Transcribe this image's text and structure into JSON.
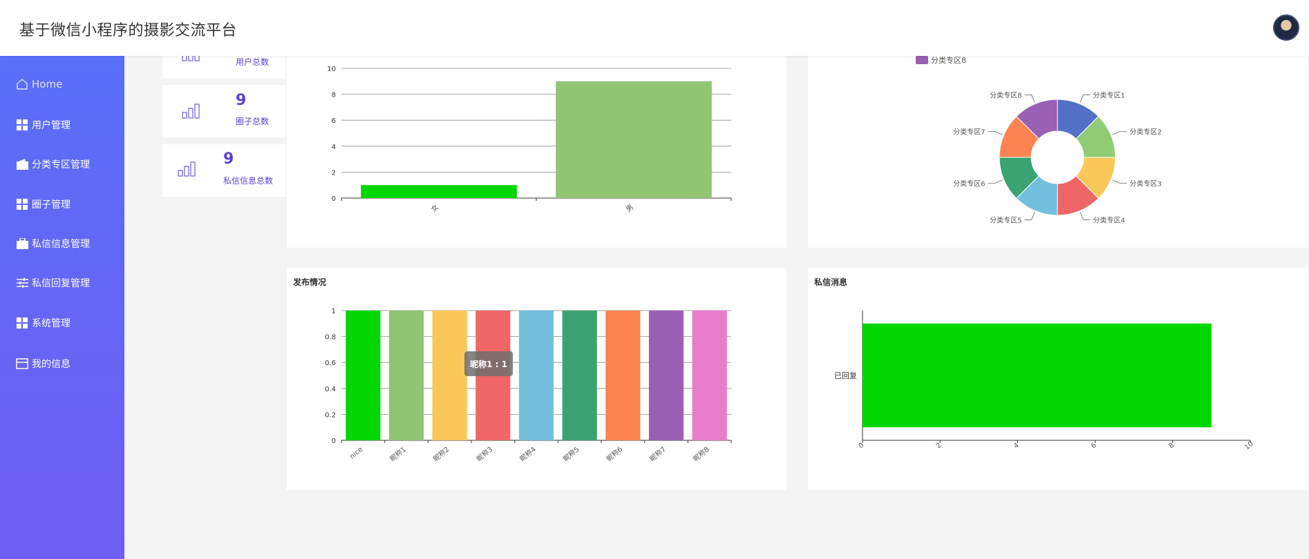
{
  "app": {
    "title": "基于微信小程序的摄影交流平台"
  },
  "sidebar": {
    "items": [
      {
        "label": "Home",
        "icon": "home-icon"
      },
      {
        "label": "用户管理",
        "icon": "grid-icon"
      },
      {
        "label": "分类专区管理",
        "icon": "wallet-icon"
      },
      {
        "label": "圈子管理",
        "icon": "grid-icon"
      },
      {
        "label": "私信信息管理",
        "icon": "briefcase-icon"
      },
      {
        "label": "私信回复管理",
        "icon": "sliders-icon"
      },
      {
        "label": "系统管理",
        "icon": "grid-icon"
      },
      {
        "label": "我的信息",
        "icon": "card-icon"
      }
    ]
  },
  "stats": [
    {
      "label": "用户总数",
      "value": ""
    },
    {
      "label": "圈子总数",
      "value": "9"
    },
    {
      "label": "私信信息总数",
      "value": "9"
    }
  ],
  "panels": {
    "publish_title": "发布情况",
    "message_title": "私信消息"
  },
  "tooltip": {
    "text": "昵称1 : 1"
  },
  "colors": {
    "sidebar_start": "#5a6ef8",
    "sidebar_end": "#6f5ef2",
    "stat_accent": "#5b3fd6"
  },
  "chart_data": [
    {
      "type": "bar",
      "categories": [
        "女",
        "男"
      ],
      "values": [
        1,
        9
      ],
      "colors": [
        "#00d600",
        "#91c473"
      ],
      "ylim": [
        0,
        10
      ],
      "yticks": [
        0,
        2,
        4,
        6,
        8,
        10
      ],
      "grid": true
    },
    {
      "type": "pie",
      "donut": true,
      "categories": [
        "分类专区1",
        "分类专区2",
        "分类专区3",
        "分类专区4",
        "分类专区5",
        "分类专区6",
        "分类专区7",
        "分类专区8"
      ],
      "values": [
        1,
        1,
        1,
        1,
        1,
        1,
        1,
        1
      ],
      "colors": [
        "#5470c6",
        "#91cc75",
        "#fac858",
        "#ee6666",
        "#73c0de",
        "#3ba272",
        "#fc8452",
        "#9a60b4"
      ],
      "legend": {
        "visible_entries": [
          "分类专区8"
        ],
        "placement": "top"
      }
    },
    {
      "type": "bar",
      "title": "发布情况",
      "categories": [
        "nice",
        "昵称1",
        "昵称2",
        "昵称3",
        "昵称4",
        "昵称5",
        "昵称6",
        "昵称7",
        "昵称8"
      ],
      "values": [
        1,
        1,
        1,
        1,
        1,
        1,
        1,
        1,
        1
      ],
      "colors": [
        "#00d600",
        "#91c473",
        "#fac858",
        "#ee6666",
        "#73c0de",
        "#3ba272",
        "#fc8452",
        "#9a60b4",
        "#ea7ccc"
      ],
      "ylim": [
        0,
        1
      ],
      "yticks": [
        0,
        0.2,
        0.4,
        0.6,
        0.8,
        1
      ],
      "grid": true
    },
    {
      "type": "bar",
      "orientation": "horizontal",
      "title": "私信消息",
      "categories": [
        "已回复"
      ],
      "values": [
        9
      ],
      "colors": [
        "#00d600"
      ],
      "xlim": [
        0,
        10
      ],
      "xticks": [
        0,
        2,
        4,
        6,
        8,
        10
      ]
    }
  ]
}
